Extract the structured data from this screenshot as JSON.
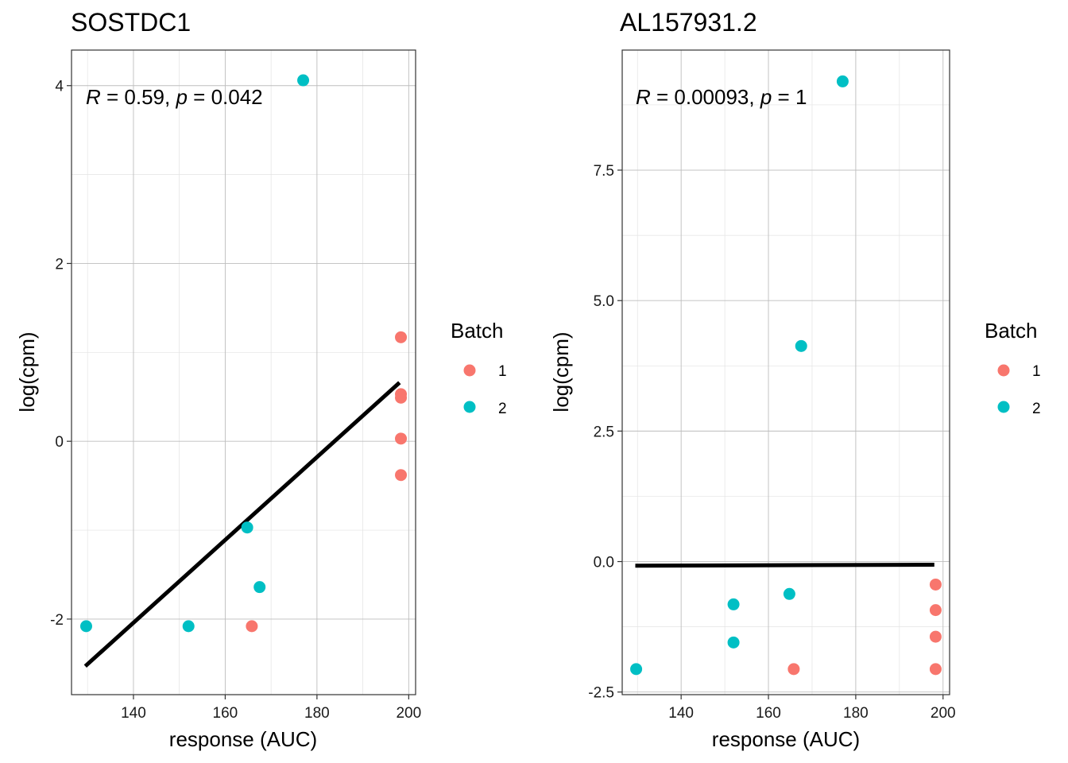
{
  "chart_data": [
    {
      "type": "scatter",
      "title": "SOSTDC1",
      "xlabel": "response (AUC)",
      "ylabel": "log(cpm)",
      "xlim": [
        126.5,
        201.5
      ],
      "ylim": [
        -2.85,
        4.4
      ],
      "xticks": [
        140,
        160,
        180,
        200
      ],
      "xtick_labels": [
        "140",
        "160",
        "180",
        "200"
      ],
      "yticks": [
        -2,
        0,
        2,
        4
      ],
      "ytick_labels": [
        "-2",
        "0",
        "2",
        "4"
      ],
      "annotation": {
        "r_symbol": "R",
        "r_text": " = 0.59, ",
        "p_symbol": "p",
        "p_text": " = 0.042"
      },
      "legend": {
        "title": "Batch",
        "entries": [
          {
            "label": "1",
            "color": "#F8766D"
          },
          {
            "label": "2",
            "color": "#00BFC4"
          }
        ]
      },
      "regression_line": {
        "x": [
          129.5,
          198.0
        ],
        "y": [
          -2.53,
          0.66
        ]
      },
      "points": [
        {
          "x": 129.7,
          "y": -2.08,
          "batch": "2"
        },
        {
          "x": 152.0,
          "y": -2.08,
          "batch": "2"
        },
        {
          "x": 164.8,
          "y": -0.97,
          "batch": "2"
        },
        {
          "x": 167.5,
          "y": -1.64,
          "batch": "2"
        },
        {
          "x": 177.0,
          "y": 4.06,
          "batch": "2"
        },
        {
          "x": 165.8,
          "y": -2.08,
          "batch": "1"
        },
        {
          "x": 198.3,
          "y": 1.17,
          "batch": "1"
        },
        {
          "x": 198.3,
          "y": 0.53,
          "batch": "1"
        },
        {
          "x": 198.3,
          "y": 0.49,
          "batch": "1"
        },
        {
          "x": 198.3,
          "y": 0.03,
          "batch": "1"
        },
        {
          "x": 198.3,
          "y": -0.38,
          "batch": "1"
        }
      ]
    },
    {
      "type": "scatter",
      "title": "AL157931.2",
      "xlabel": "response (AUC)",
      "ylabel": "log(cpm)",
      "xlim": [
        126.5,
        201.5
      ],
      "ylim": [
        -2.55,
        9.8
      ],
      "xticks": [
        140,
        160,
        180,
        200
      ],
      "xtick_labels": [
        "140",
        "160",
        "180",
        "200"
      ],
      "yticks": [
        -2.5,
        0,
        2.5,
        5,
        7.5
      ],
      "ytick_labels": [
        "-2.5",
        "0.0",
        "2.5",
        "5.0",
        "7.5"
      ],
      "annotation": {
        "r_symbol": "R",
        "r_text": " = 0.00093, ",
        "p_symbol": "p",
        "p_text": " = 1"
      },
      "legend": {
        "title": "Batch",
        "entries": [
          {
            "label": "1",
            "color": "#F8766D"
          },
          {
            "label": "2",
            "color": "#00BFC4"
          }
        ]
      },
      "regression_line": {
        "x": [
          129.5,
          198.0
        ],
        "y": [
          -0.08,
          -0.06
        ]
      },
      "points": [
        {
          "x": 129.7,
          "y": -2.06,
          "batch": "2"
        },
        {
          "x": 152.0,
          "y": -0.82,
          "batch": "2"
        },
        {
          "x": 152.0,
          "y": -1.55,
          "batch": "2"
        },
        {
          "x": 164.8,
          "y": -0.62,
          "batch": "2"
        },
        {
          "x": 167.5,
          "y": 4.13,
          "batch": "2"
        },
        {
          "x": 177.0,
          "y": 9.2,
          "batch": "2"
        },
        {
          "x": 165.8,
          "y": -2.06,
          "batch": "1"
        },
        {
          "x": 198.3,
          "y": -0.44,
          "batch": "1"
        },
        {
          "x": 198.3,
          "y": -0.93,
          "batch": "1"
        },
        {
          "x": 198.3,
          "y": -1.44,
          "batch": "1"
        },
        {
          "x": 198.3,
          "y": -2.06,
          "batch": "1"
        }
      ]
    }
  ]
}
